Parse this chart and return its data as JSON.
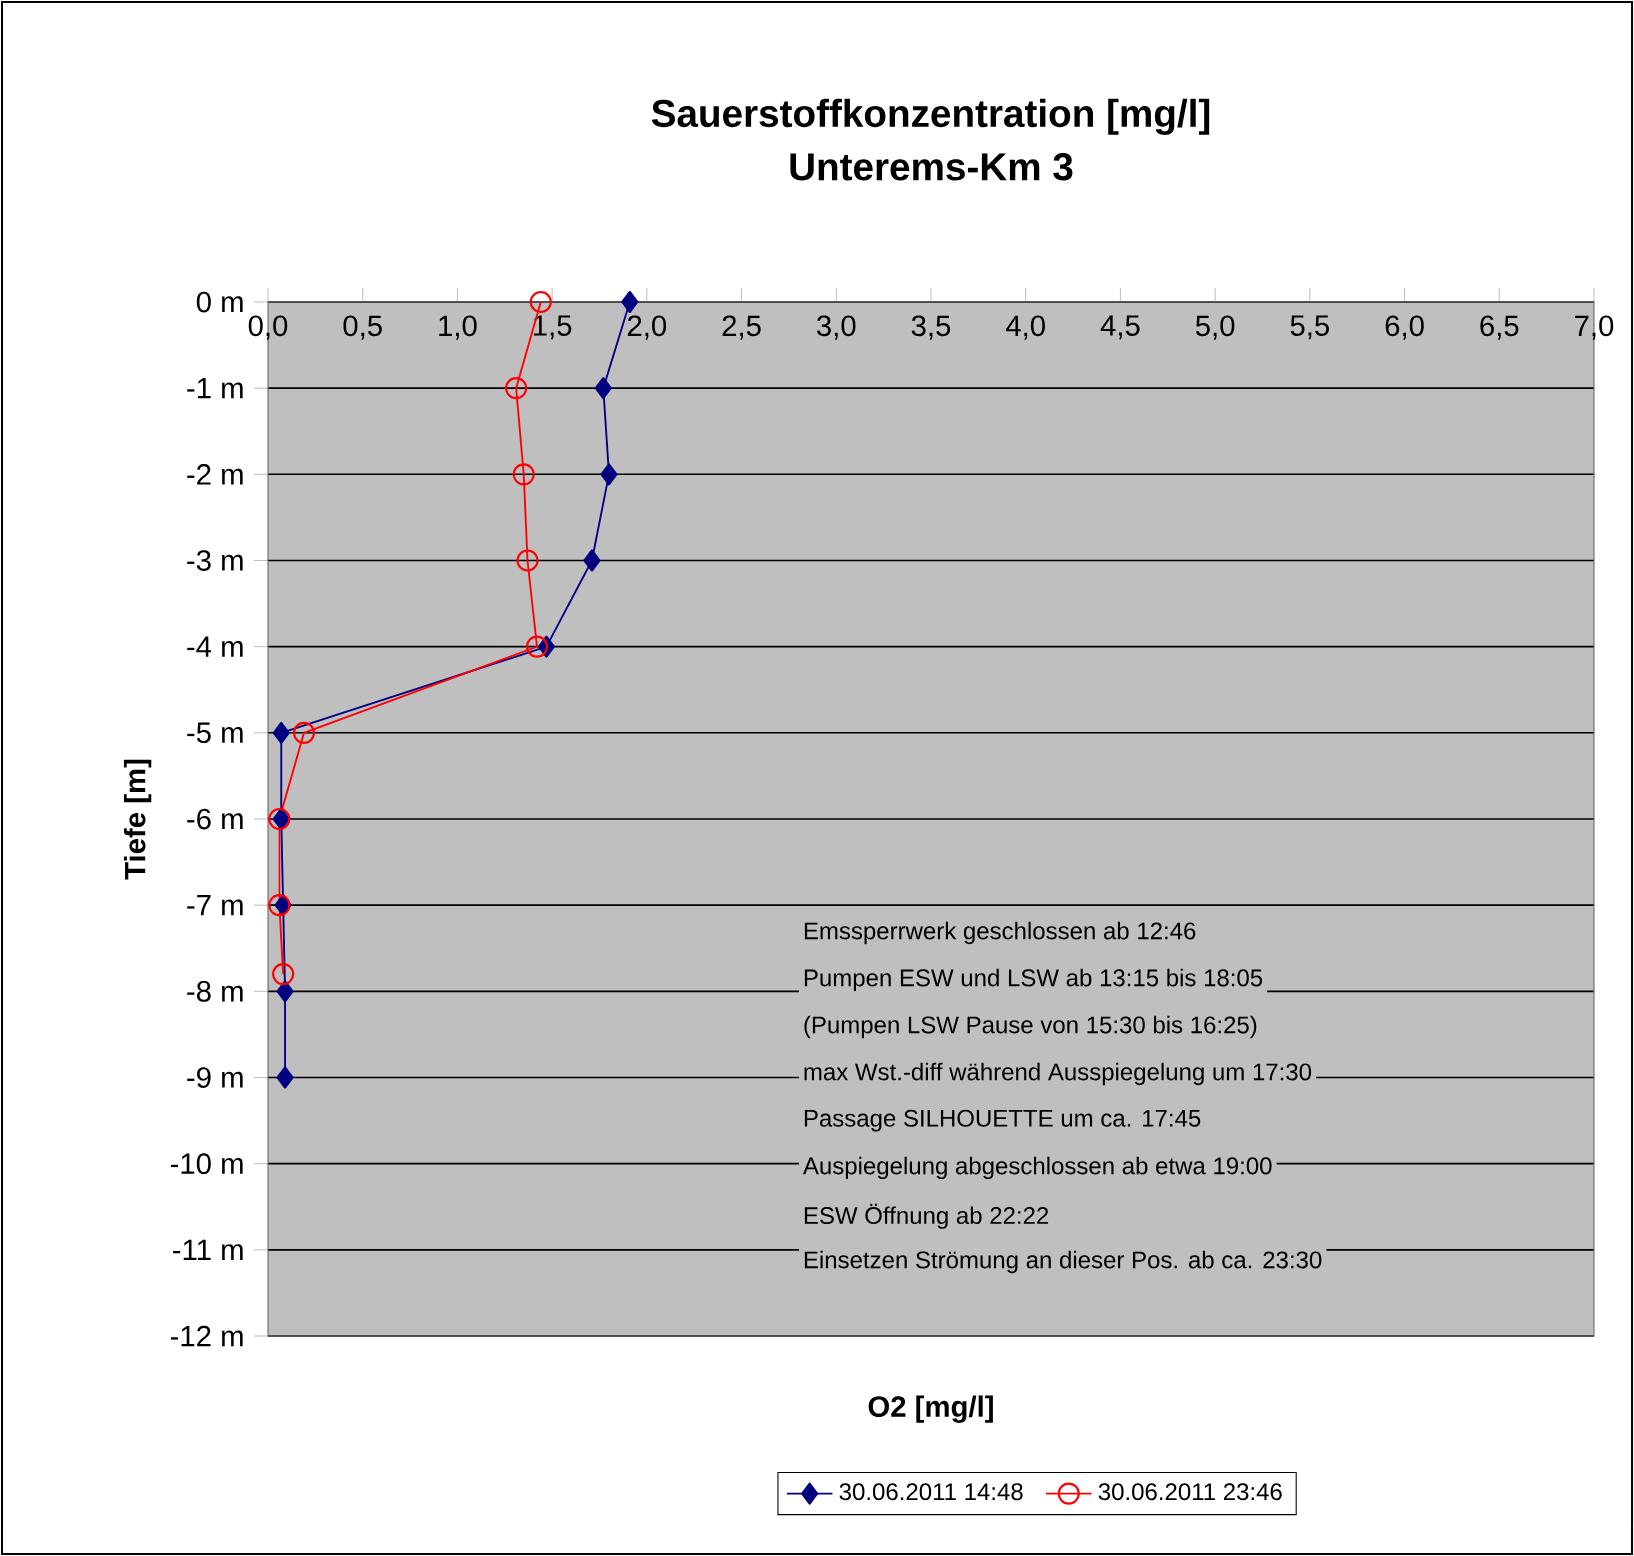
{
  "chart_data": {
    "type": "line",
    "title": "Sauerstoffkonzentration [mg/l]",
    "subtitle": "Unterems-Km 3",
    "xlabel": "O2 [mg/l]",
    "ylabel": "Tiefe [m]",
    "xlim": [
      0,
      7
    ],
    "xticks": [
      {
        "value": 0,
        "label": "0,0"
      },
      {
        "value": 0.5,
        "label": "0,5"
      },
      {
        "value": 1,
        "label": "1,0"
      },
      {
        "value": 1.5,
        "label": "1,5"
      },
      {
        "value": 2,
        "label": "2,0"
      },
      {
        "value": 2.5,
        "label": "2,5"
      },
      {
        "value": 3,
        "label": "3,0"
      },
      {
        "value": 3.5,
        "label": "3,5"
      },
      {
        "value": 4,
        "label": "4,0"
      },
      {
        "value": 4.5,
        "label": "4,5"
      },
      {
        "value": 5,
        "label": "5,0"
      },
      {
        "value": 5.5,
        "label": "5,5"
      },
      {
        "value": 6,
        "label": "6,0"
      },
      {
        "value": 6.5,
        "label": "6,5"
      },
      {
        "value": 7,
        "label": "7,0"
      }
    ],
    "ylim": [
      -12,
      0
    ],
    "yticks": [
      {
        "value": 0,
        "label": "0 m"
      },
      {
        "value": -1,
        "label": "-1 m"
      },
      {
        "value": -2,
        "label": "-2 m"
      },
      {
        "value": -3,
        "label": "-3 m"
      },
      {
        "value": -4,
        "label": "-4 m"
      },
      {
        "value": -5,
        "label": "-5 m"
      },
      {
        "value": -6,
        "label": "-6 m"
      },
      {
        "value": -7,
        "label": "-7 m"
      },
      {
        "value": -8,
        "label": "-8 m"
      },
      {
        "value": -9,
        "label": "-9 m"
      },
      {
        "value": -10,
        "label": "-10 m"
      },
      {
        "value": -11,
        "label": "-11 m"
      },
      {
        "value": -12,
        "label": "-12 m"
      }
    ],
    "grid": "y",
    "legend": "bottom",
    "line_style": "solid",
    "series": [
      {
        "name": "30.06.2011 14:48",
        "color": "#000080",
        "marker": "diamond",
        "x": [
          1.91,
          1.77,
          1.8,
          1.71,
          1.47,
          0.07,
          0.07,
          0.08,
          0.09,
          0.09
        ],
        "values": [
          0,
          -1,
          -2,
          -3,
          -4,
          -5,
          -6,
          -7,
          -8,
          -9
        ]
      },
      {
        "name": "30.06.2011 23:46",
        "color": "#ff0000",
        "marker": "circle",
        "x": [
          1.44,
          1.31,
          1.35,
          1.37,
          1.42,
          0.19,
          0.06,
          0.06,
          0.08
        ],
        "values": [
          0,
          -1,
          -2,
          -3,
          -4,
          -5,
          -6,
          -7,
          -7.8
        ]
      }
    ],
    "annotations": [
      "Emssperrwerk geschlossen ab 12:46",
      "Pumpen ESW und LSW ab 13:15 bis 18:05",
      "(Pumpen LSW Pause von 15:30 bis 16:25)",
      "max Wst.-diff während Ausspiegelung um 17:30",
      "Passage SILHOUETTE um ca. 17:45",
      "Auspiegelung abgeschlossen ab etwa 19:00",
      "ESW Öffnung ab 22:22",
      "Einsetzen Strömung an dieser Pos. ab ca. 23:30"
    ]
  }
}
